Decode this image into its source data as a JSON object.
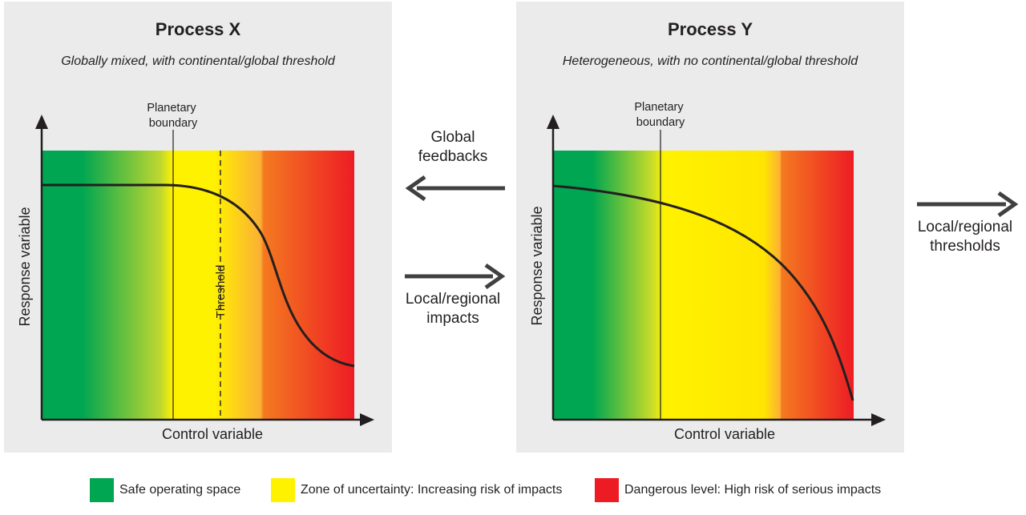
{
  "process_x": {
    "title": "Process X",
    "subtitle": "Globally mixed, with continental/global threshold",
    "boundary_label": [
      "Planetary",
      "boundary"
    ],
    "threshold_label": "Threshold",
    "x_axis_label": "Control variable",
    "y_axis_label": "Response variable"
  },
  "process_y": {
    "title": "Process Y",
    "subtitle": "Heterogeneous, with no continental/global threshold",
    "boundary_label": [
      "Planetary",
      "boundary"
    ],
    "x_axis_label": "Control variable",
    "y_axis_label": "Response variable"
  },
  "arrows": {
    "global_feedbacks": [
      "Global",
      "feedbacks"
    ],
    "local_impacts": [
      "Local/regional",
      "impacts"
    ],
    "local_thresholds": [
      "Local/regional",
      "thresholds"
    ]
  },
  "legend": [
    {
      "label": "Safe operating space",
      "color": "#00a651"
    },
    {
      "label": "Zone of uncertainty: Increasing risk of impacts",
      "color": "#fff200"
    },
    {
      "label": "Dangerous level: High risk of serious impacts",
      "color": "#ed1c24"
    }
  ],
  "colors": {
    "green": "#00a651",
    "yellow": "#fff200",
    "orange": "#f7941d",
    "red": "#ed1c24",
    "panel_bg": "#ebebeb",
    "ink": "#231f20",
    "arrow": "#404040"
  }
}
